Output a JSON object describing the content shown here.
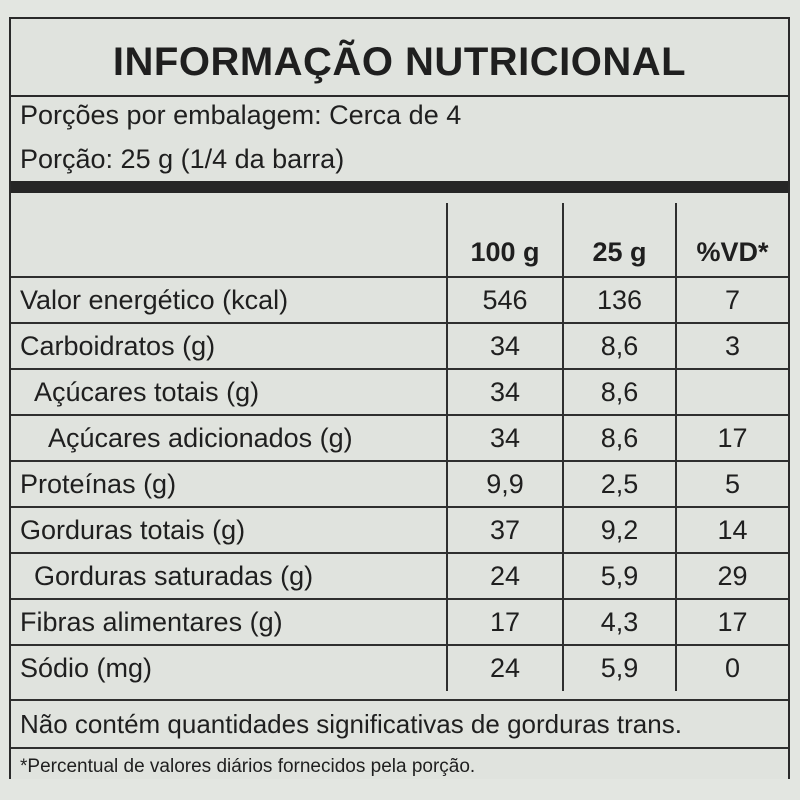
{
  "title": "INFORMAÇÃO NUTRICIONAL",
  "servings_per_package": "Porções por embalagem: Cerca de 4",
  "serving_size": "Porção: 25 g (1/4 da barra)",
  "columns": {
    "per100": "100 g",
    "per25": "25 g",
    "dv": "%VD*"
  },
  "rows": [
    {
      "name": "Valor energético (kcal)",
      "per100": "546",
      "per25": "136",
      "dv": "7"
    },
    {
      "name": "Carboidratos (g)",
      "per100": "34",
      "per25": "8,6",
      "dv": "3"
    },
    {
      "name": "Açúcares totais (g)",
      "per100": "34",
      "per25": "8,6",
      "dv": ""
    },
    {
      "name": "Açúcares adicionados (g)",
      "per100": "34",
      "per25": "8,6",
      "dv": "17"
    },
    {
      "name": "Proteínas (g)",
      "per100": "9,9",
      "per25": "2,5",
      "dv": "5"
    },
    {
      "name": "Gorduras totais (g)",
      "per100": "37",
      "per25": "9,2",
      "dv": "14"
    },
    {
      "name": "Gorduras saturadas (g)",
      "per100": "24",
      "per25": "5,9",
      "dv": "29"
    },
    {
      "name": "Fibras alimentares (g)",
      "per100": "17",
      "per25": "4,3",
      "dv": "17"
    },
    {
      "name": "Sódio (mg)",
      "per100": "24",
      "per25": "5,9",
      "dv": "0"
    }
  ],
  "trans_note": "Não contém quantidades significativas de gorduras trans.",
  "footnote": "*Percentual de valores diários fornecidos pela porção."
}
